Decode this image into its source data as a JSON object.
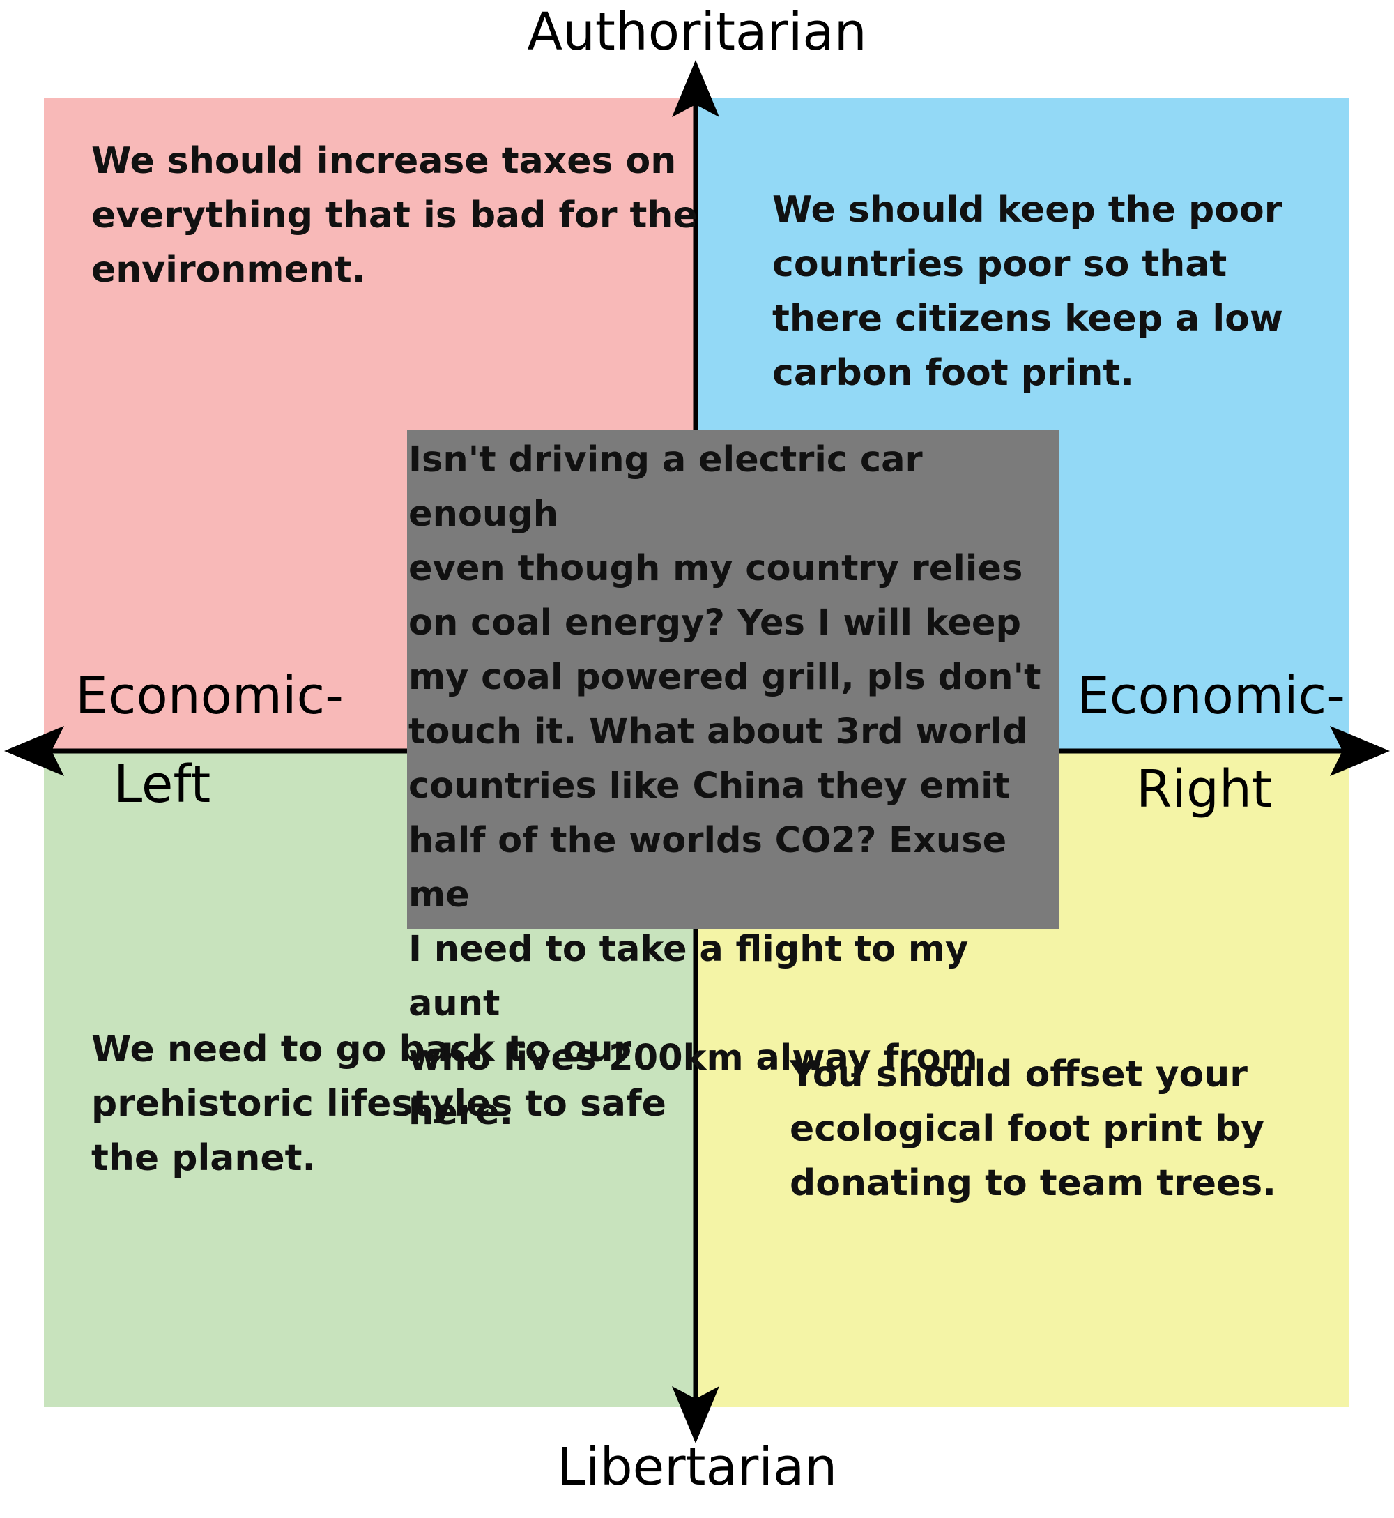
{
  "axes": {
    "top": "Authoritarian",
    "bottom": "Libertarian",
    "left_line1": "Economic-",
    "left_line2": "Left",
    "right_line1": "Economic-",
    "right_line2": "Right"
  },
  "quadrants": {
    "auth_left": {
      "color": "#f8b9b8",
      "text": "We should increase taxes on\neverything that is bad for the\nenvironment."
    },
    "auth_right": {
      "color": "#93d9f6",
      "text": "We should keep the poor\ncountries poor so that\nthere citizens keep a low\ncarbon foot print."
    },
    "lib_left": {
      "color": "#c8e3bd",
      "text": "We need to go back to our\nprehistoric lifestyles to safe\nthe planet."
    },
    "lib_right": {
      "color": "#f4f4a6",
      "text": "You should offset your\necological foot print by\ndonating to team trees."
    }
  },
  "center": {
    "color": "#7b7b7b",
    "text": "Isn't driving a electric car enough\neven though my country relies\non coal energy? Yes I will keep\nmy coal powered grill, pls don't\ntouch it. What about 3rd world\ncountries like China they emit\nhalf of the worlds CO2? Exuse me\nI need to take a flight to my aunt\nwho lives 200km alway from here."
  }
}
